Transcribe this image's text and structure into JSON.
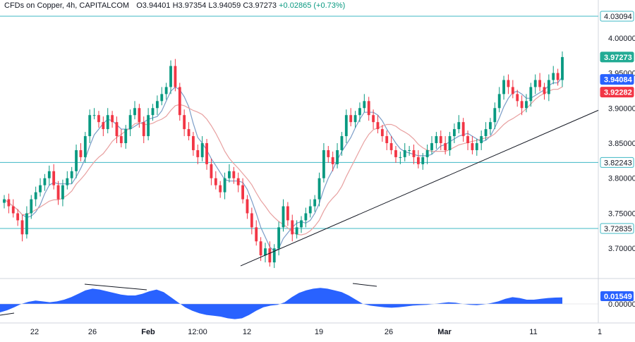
{
  "header": {
    "instrument": "CFDs on Copper, 4h, CAPITALCOM",
    "open": "O3.94401",
    "high": "H3.97354",
    "low": "L3.94059",
    "close": "C3.97273",
    "change": "+0.02865 (+0.73%)"
  },
  "colors": {
    "up": "#089981",
    "down": "#f23645",
    "ma_fast": "#7b9dc8",
    "ma_slow": "#e8a0a0",
    "level_line": "#3fb8c4",
    "oscillator": "#2962ff",
    "badge_cyan": "#22ab94",
    "badge_blue": "#2962ff",
    "badge_red": "#f23645"
  },
  "price_axis": {
    "min": 3.66,
    "max": 4.04,
    "ticks": [
      "4.00000",
      "3.95000",
      "3.90000",
      "3.85000",
      "3.80000",
      "3.75000",
      "3.70000"
    ]
  },
  "oscillator_axis": {
    "ticks": [
      "0.00000"
    ],
    "current_label": "0.01549"
  },
  "badges": [
    {
      "label": "4.03094",
      "value": 4.03094,
      "style": "outline"
    },
    {
      "label": "3.97273",
      "value": 3.97273,
      "style": "cyan"
    },
    {
      "label": "3.94084",
      "value": 3.94084,
      "style": "blue"
    },
    {
      "label": "3.92282",
      "value": 3.92282,
      "style": "red"
    },
    {
      "label": "3.82243",
      "value": 3.82243,
      "style": "outline"
    },
    {
      "label": "3.72835",
      "value": 3.72835,
      "style": "outline"
    }
  ],
  "time_axis": {
    "labels": [
      "22",
      "26",
      "Feb",
      "12:00",
      "12",
      "19",
      "26",
      "Mar",
      "11",
      "1"
    ],
    "bold": [
      "Feb",
      "Mar"
    ]
  },
  "chart_data": {
    "type": "candlestick",
    "title": "CFDs on Copper, 4h, CAPITALCOM",
    "horizontal_levels": [
      4.03094,
      3.82243,
      3.72835
    ],
    "trendline": {
      "from": 3.675,
      "to": 3.925
    },
    "moving_averages": [
      {
        "current": 3.94084
      },
      {
        "current": 3.92282
      }
    ],
    "last_close": 3.97273,
    "closes": [
      3.77,
      3.76,
      3.75,
      3.74,
      3.72,
      3.75,
      3.77,
      3.78,
      3.79,
      3.8,
      3.81,
      3.79,
      3.77,
      3.79,
      3.8,
      3.81,
      3.84,
      3.83,
      3.86,
      3.89,
      3.89,
      3.88,
      3.87,
      3.89,
      3.88,
      3.86,
      3.85,
      3.87,
      3.89,
      3.9,
      3.88,
      3.86,
      3.89,
      3.9,
      3.91,
      3.92,
      3.93,
      3.96,
      3.93,
      3.89,
      3.87,
      3.86,
      3.84,
      3.83,
      3.85,
      3.82,
      3.8,
      3.79,
      3.78,
      3.8,
      3.81,
      3.8,
      3.79,
      3.77,
      3.75,
      3.73,
      3.71,
      3.69,
      3.7,
      3.68,
      3.7,
      3.73,
      3.76,
      3.74,
      3.72,
      3.73,
      3.74,
      3.75,
      3.76,
      3.77,
      3.8,
      3.84,
      3.83,
      3.82,
      3.84,
      3.86,
      3.89,
      3.88,
      3.89,
      3.9,
      3.91,
      3.89,
      3.88,
      3.87,
      3.86,
      3.85,
      3.84,
      3.83,
      3.83,
      3.84,
      3.84,
      3.83,
      3.82,
      3.83,
      3.84,
      3.85,
      3.86,
      3.85,
      3.84,
      3.86,
      3.87,
      3.88,
      3.86,
      3.85,
      3.84,
      3.85,
      3.86,
      3.87,
      3.88,
      3.9,
      3.92,
      3.94,
      3.93,
      3.92,
      3.91,
      3.9,
      3.91,
      3.93,
      3.94,
      3.93,
      3.92,
      3.94,
      3.95,
      3.94,
      3.97273
    ],
    "oscillator": [
      -0.02,
      -0.015,
      -0.008,
      0,
      0.005,
      0.008,
      0.006,
      0.004,
      0.006,
      0.01,
      0.016,
      0.024,
      0.032,
      0.036,
      0.034,
      0.03,
      0.026,
      0.022,
      0.02,
      0.02,
      0.024,
      0.03,
      0.034,
      0.028,
      0.016,
      0.004,
      -0.008,
      -0.016,
      -0.022,
      -0.026,
      -0.028,
      -0.03,
      -0.034,
      -0.036,
      -0.034,
      -0.026,
      -0.016,
      -0.008,
      -0.004,
      -0.002,
      0.004,
      0.016,
      0.026,
      0.032,
      0.036,
      0.038,
      0.036,
      0.032,
      0.028,
      0.02,
      0.01,
      0,
      -0.004,
      -0.006,
      -0.008,
      -0.009,
      -0.008,
      -0.006,
      -0.004,
      -0.003,
      -0.002,
      0,
      0.002,
      0.004,
      0.003,
      0,
      -0.002,
      -0.003,
      -0.001,
      0.002,
      0.006,
      0.012,
      0.016,
      0.014,
      0.01,
      0.01,
      0.012,
      0.014,
      0.015,
      0.01549
    ]
  }
}
